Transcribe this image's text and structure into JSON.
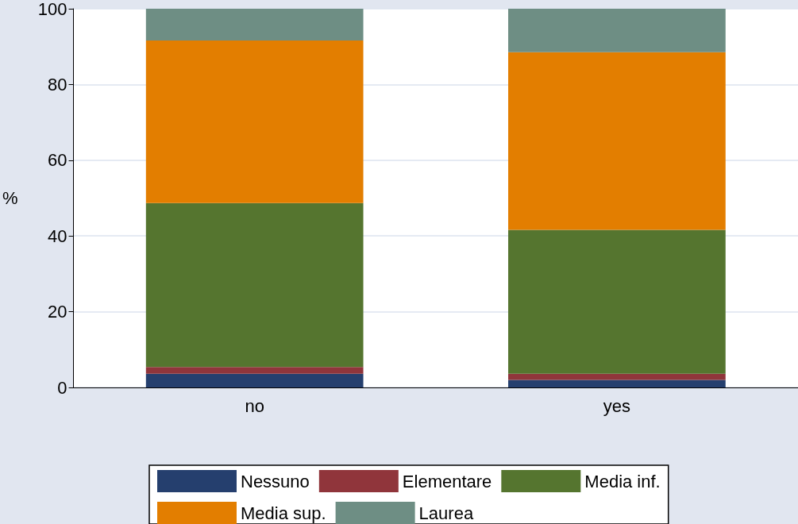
{
  "chart_data": {
    "type": "bar",
    "stacked": true,
    "ylabel": "%",
    "categories": [
      "no",
      "yes"
    ],
    "series": [
      {
        "name": "Nessuno",
        "color": "#253f6e",
        "values": [
          3.6,
          2.0
        ]
      },
      {
        "name": "Elementare",
        "color": "#90353b",
        "values": [
          1.8,
          1.6
        ]
      },
      {
        "name": "Media inf.",
        "color": "#55752f",
        "values": [
          43.3,
          38.0
        ]
      },
      {
        "name": "Media sup.",
        "color": "#e37e00",
        "values": [
          42.9,
          46.9
        ]
      },
      {
        "name": "Laurea",
        "color": "#6e8e84",
        "values": [
          8.4,
          11.5
        ]
      }
    ],
    "ylim": [
      0,
      100
    ],
    "yticks": [
      0,
      20,
      40,
      60,
      80,
      100
    ],
    "grid": "y",
    "legend": "bottom"
  }
}
